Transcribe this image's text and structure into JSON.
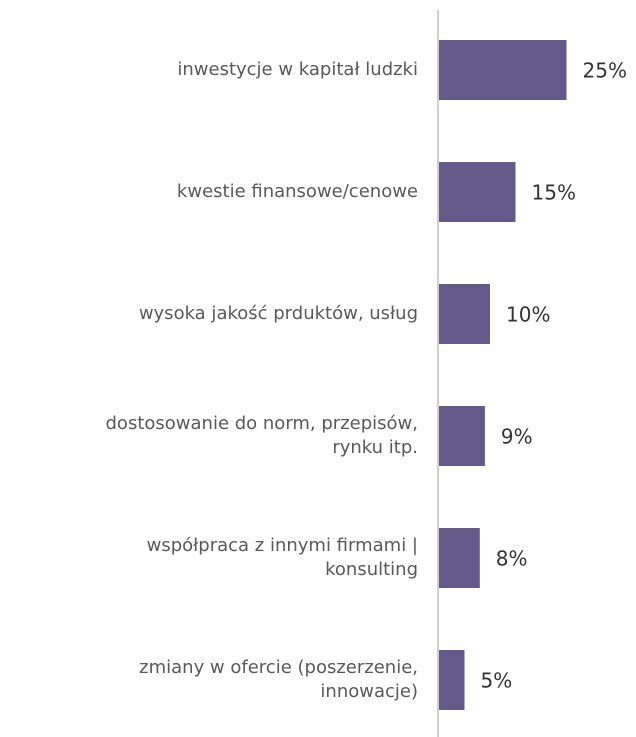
{
  "chart_data": {
    "type": "bar",
    "orientation": "horizontal",
    "categories": [
      "inwestycje w kapitał ludzki",
      "kwestie finansowe/cenowe",
      "wysoka jakość prduktów, usług",
      "dostosowanie do norm, przepisów,\nrynku itp.",
      "współpraca z innymi firmami |\nkonsulting",
      "zmiany w ofercie (poszerzenie,\ninnowacje)"
    ],
    "values": [
      25,
      15,
      10,
      9,
      8,
      5
    ],
    "value_labels": [
      "25%",
      "15%",
      "10%",
      "9%",
      "8%",
      "5%"
    ],
    "color": "#635a8a"
  }
}
